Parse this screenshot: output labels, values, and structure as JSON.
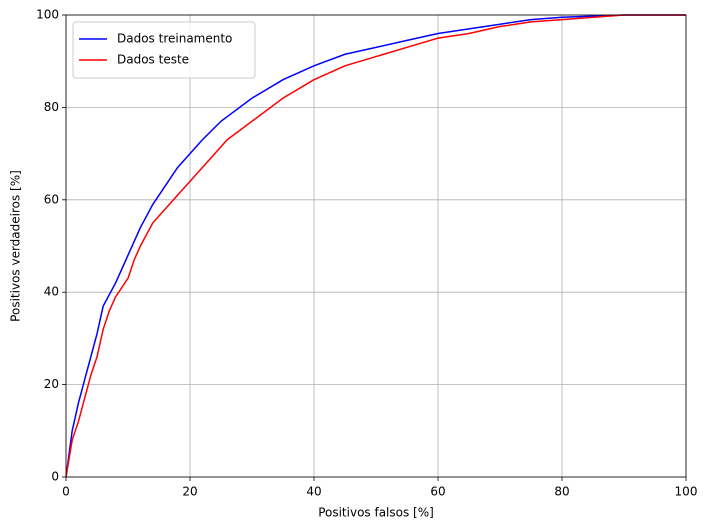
{
  "chart_data": {
    "type": "line",
    "xlabel": "Positivos falsos [%]",
    "ylabel": "Positivos verdadeiros [%]",
    "xlim": [
      0,
      100
    ],
    "ylim": [
      0,
      100
    ],
    "xticks": [
      0,
      20,
      40,
      60,
      80,
      100
    ],
    "yticks": [
      0,
      20,
      40,
      60,
      80,
      100
    ],
    "grid": true,
    "legend": "upper-left",
    "series": [
      {
        "name": "Dados treinamento",
        "color": "#0000ff",
        "x": [
          0,
          0.5,
          1,
          2,
          3,
          4,
          5,
          6,
          8,
          10,
          12,
          14,
          16,
          18,
          20,
          22,
          25,
          30,
          35,
          40,
          45,
          50,
          55,
          60,
          65,
          70,
          75,
          80,
          90,
          100
        ],
        "values": [
          0,
          5,
          10,
          16,
          21,
          26,
          31,
          37,
          42,
          48,
          54,
          59,
          63,
          67,
          70,
          73,
          77,
          82,
          86,
          89,
          91.5,
          93,
          94.5,
          96,
          97,
          98,
          99,
          99.5,
          100,
          100
        ]
      },
      {
        "name": "Dados teste",
        "color": "#ff0000",
        "x": [
          0,
          0.5,
          1,
          2,
          3,
          4,
          5,
          6,
          7,
          8,
          10,
          11,
          12,
          14,
          16,
          18,
          20,
          22,
          24,
          26,
          30,
          35,
          40,
          45,
          50,
          55,
          60,
          65,
          70,
          75,
          80,
          90,
          100
        ],
        "values": [
          0,
          4,
          8,
          12,
          17,
          22,
          26,
          32,
          36,
          39,
          43,
          47,
          50,
          55,
          58,
          61,
          64,
          67,
          70,
          73,
          77,
          82,
          86,
          89,
          91,
          93,
          95,
          96,
          97.5,
          98.5,
          99,
          100,
          100
        ]
      }
    ]
  }
}
